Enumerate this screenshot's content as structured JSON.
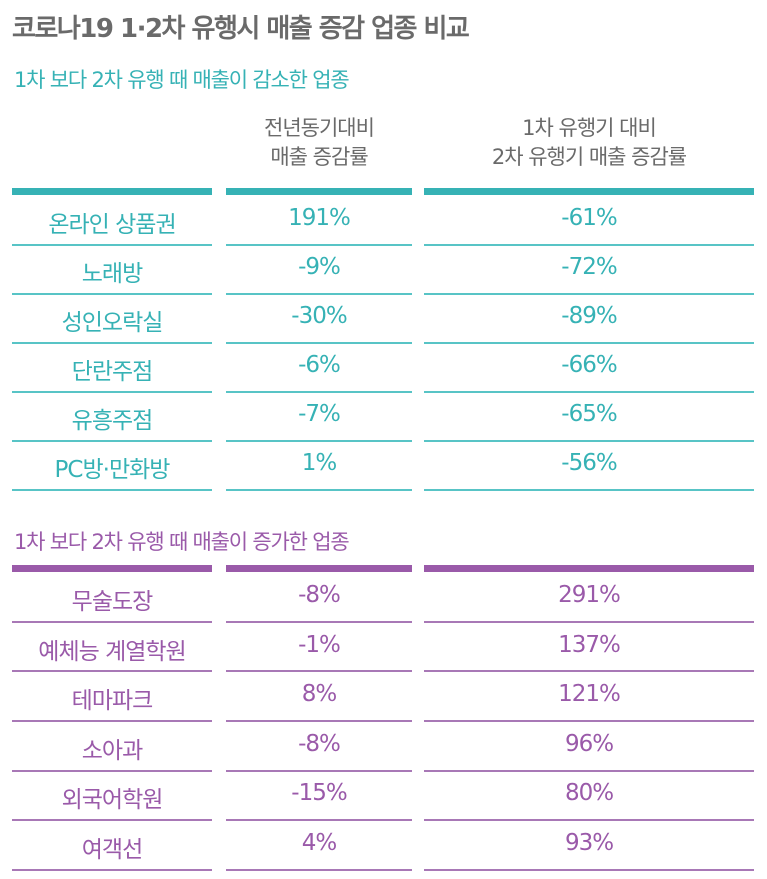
{
  "title": "코로나19 1·2차 유행시 매출 증감 업종 비교",
  "colors": {
    "decrease": "#36b2b5",
    "increase": "#9a5aa9",
    "header": "#6a6a6a"
  },
  "chart_data": {
    "type": "table",
    "columns": [
      {
        "lines": [
          "전년동기대비",
          "매출 증감률"
        ]
      },
      {
        "lines": [
          "1차 유행기 대비",
          "2차 유행기 매출 증감률"
        ]
      }
    ],
    "groups": [
      {
        "label": "1차 보다 2차 유행 때 매출이 감소한 업종",
        "color": "#36b2b5",
        "rows": [
          {
            "name": "온라인 상품권",
            "yoy": "191%",
            "vs_first": "-61%"
          },
          {
            "name": "노래방",
            "yoy": "-9%",
            "vs_first": "-72%"
          },
          {
            "name": "성인오락실",
            "yoy": "-30%",
            "vs_first": "-89%"
          },
          {
            "name": "단란주점",
            "yoy": "-6%",
            "vs_first": "-66%"
          },
          {
            "name": "유흥주점",
            "yoy": "-7%",
            "vs_first": "-65%"
          },
          {
            "name": "PC방·만화방",
            "yoy": "1%",
            "vs_first": "-56%"
          }
        ]
      },
      {
        "label": "1차 보다 2차 유행 때 매출이 증가한 업종",
        "color": "#9a5aa9",
        "rows": [
          {
            "name": "무술도장",
            "yoy": "-8%",
            "vs_first": "291%"
          },
          {
            "name": "예체능 계열학원",
            "yoy": "-1%",
            "vs_first": "137%"
          },
          {
            "name": "테마파크",
            "yoy": "8%",
            "vs_first": "121%"
          },
          {
            "name": "소아과",
            "yoy": "-8%",
            "vs_first": "96%"
          },
          {
            "name": "외국어학원",
            "yoy": "-15%",
            "vs_first": "80%"
          },
          {
            "name": "여객선",
            "yoy": "4%",
            "vs_first": "93%"
          }
        ]
      }
    ]
  }
}
